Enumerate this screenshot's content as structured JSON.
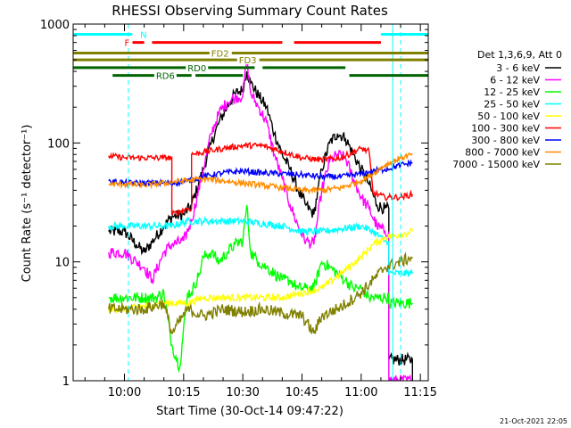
{
  "chart_data": {
    "type": "line",
    "title": "RHESSI Observing Summary Count Rates",
    "xlabel": "Start Time (30-Oct-14 09:47:22)",
    "ylabel": "Count Rate (s⁻¹ detector⁻¹)",
    "y_scale": "log",
    "ylim": [
      1,
      1000
    ],
    "xlim_minutes": [
      -13,
      77
    ],
    "x_tick_labels": [
      "10:00",
      "10:15",
      "10:30",
      "10:45",
      "11:00",
      "11:15"
    ],
    "x_tick_minutes": [
      0,
      15,
      30,
      45,
      60,
      75
    ],
    "y_tick_labels": [
      "1",
      "10",
      "100",
      "1000"
    ],
    "y_tick_values": [
      1,
      10,
      100,
      1000
    ],
    "grid": false,
    "legend": {
      "placement": "right",
      "header": "Det 1,3,6,9, Att 0",
      "entries": [
        {
          "name": "3 - 6 keV",
          "color": "#000000"
        },
        {
          "name": "6 - 12 keV",
          "color": "#ff00ff"
        },
        {
          "name": "12 - 25 keV",
          "color": "#00ff00"
        },
        {
          "name": "25 - 50 keV",
          "color": "#00ffff"
        },
        {
          "name": "50 - 100 keV",
          "color": "#ffff00"
        },
        {
          "name": "100 - 300 keV",
          "color": "#ff0000"
        },
        {
          "name": "300 - 800 keV",
          "color": "#0000ff"
        },
        {
          "name": "800 - 7000 keV",
          "color": "#ff8c00"
        },
        {
          "name": "7000 - 15000 keV",
          "color": "#808000"
        }
      ]
    },
    "series": [
      {
        "name": "3 - 6 keV",
        "color": "#000000",
        "noise": 0.05,
        "points": [
          [
            -4,
            1
          ],
          [
            -4,
            18
          ],
          [
            0,
            18
          ],
          [
            3,
            14
          ],
          [
            5,
            12
          ],
          [
            10,
            20
          ],
          [
            12,
            24
          ],
          [
            15,
            25
          ],
          [
            17,
            30
          ],
          [
            20,
            60
          ],
          [
            22,
            100
          ],
          [
            24,
            150
          ],
          [
            26,
            200
          ],
          [
            28,
            260
          ],
          [
            30,
            280
          ],
          [
            31,
            400
          ],
          [
            32,
            320
          ],
          [
            34,
            250
          ],
          [
            36,
            200
          ],
          [
            38,
            120
          ],
          [
            40,
            80
          ],
          [
            42,
            60
          ],
          [
            44,
            40
          ],
          [
            46,
            30
          ],
          [
            48,
            25
          ],
          [
            50,
            60
          ],
          [
            52,
            100
          ],
          [
            54,
            120
          ],
          [
            56,
            110
          ],
          [
            58,
            80
          ],
          [
            60,
            60
          ],
          [
            62,
            45
          ],
          [
            64,
            30
          ],
          [
            66,
            28
          ],
          [
            67,
            28
          ],
          [
            67,
            1.5
          ],
          [
            73,
            1.5
          ],
          [
            73,
            1
          ]
        ]
      },
      {
        "name": "6 - 12 keV",
        "color": "#ff00ff",
        "noise": 0.05,
        "points": [
          [
            -4,
            1
          ],
          [
            -4,
            12
          ],
          [
            0,
            12
          ],
          [
            3,
            10
          ],
          [
            5,
            9
          ],
          [
            7,
            7
          ],
          [
            10,
            12
          ],
          [
            12,
            14
          ],
          [
            15,
            15
          ],
          [
            17,
            22
          ],
          [
            20,
            60
          ],
          [
            22,
            120
          ],
          [
            24,
            180
          ],
          [
            26,
            220
          ],
          [
            28,
            240
          ],
          [
            30,
            250
          ],
          [
            31,
            500
          ],
          [
            32,
            260
          ],
          [
            34,
            200
          ],
          [
            36,
            150
          ],
          [
            38,
            80
          ],
          [
            40,
            50
          ],
          [
            42,
            30
          ],
          [
            44,
            20
          ],
          [
            46,
            15
          ],
          [
            48,
            14
          ],
          [
            50,
            40
          ],
          [
            52,
            70
          ],
          [
            54,
            80
          ],
          [
            56,
            75
          ],
          [
            58,
            50
          ],
          [
            60,
            35
          ],
          [
            62,
            28
          ],
          [
            64,
            20
          ],
          [
            66,
            18
          ],
          [
            67,
            18
          ],
          [
            67,
            1
          ],
          [
            73,
            1
          ]
        ]
      },
      {
        "name": "12 - 25 keV",
        "color": "#00ff00",
        "noise": 0.05,
        "points": [
          [
            -4,
            1
          ],
          [
            -4,
            5
          ],
          [
            0,
            5
          ],
          [
            5,
            5
          ],
          [
            8,
            5
          ],
          [
            10,
            5.5
          ],
          [
            12,
            2
          ],
          [
            14,
            1.3
          ],
          [
            16,
            5.5
          ],
          [
            17,
            5.5
          ],
          [
            19,
            8
          ],
          [
            20,
            11
          ],
          [
            22,
            12
          ],
          [
            24,
            10
          ],
          [
            26,
            12
          ],
          [
            28,
            14
          ],
          [
            30,
            15
          ],
          [
            31,
            30
          ],
          [
            32,
            12
          ],
          [
            34,
            10
          ],
          [
            36,
            9
          ],
          [
            38,
            8
          ],
          [
            40,
            7
          ],
          [
            42,
            7
          ],
          [
            44,
            6
          ],
          [
            46,
            6
          ],
          [
            48,
            6
          ],
          [
            50,
            10
          ],
          [
            52,
            9
          ],
          [
            54,
            8
          ],
          [
            56,
            7
          ],
          [
            58,
            6
          ],
          [
            60,
            6
          ],
          [
            62,
            5
          ],
          [
            64,
            5
          ],
          [
            66,
            5
          ],
          [
            67,
            5
          ],
          [
            67,
            4.5
          ],
          [
            73,
            4.5
          ]
        ]
      },
      {
        "name": "25 - 50 keV",
        "color": "#00ffff",
        "noise": 0.03,
        "points": [
          [
            -4,
            1
          ],
          [
            -4,
            20
          ],
          [
            0,
            20
          ],
          [
            10,
            20
          ],
          [
            12,
            20
          ],
          [
            16,
            22
          ],
          [
            20,
            22
          ],
          [
            25,
            22
          ],
          [
            30,
            22
          ],
          [
            35,
            21
          ],
          [
            40,
            20
          ],
          [
            45,
            18
          ],
          [
            50,
            18
          ],
          [
            55,
            19
          ],
          [
            60,
            20
          ],
          [
            63,
            18
          ],
          [
            66,
            15
          ],
          [
            67,
            15
          ],
          [
            67,
            8
          ],
          [
            73,
            8
          ]
        ]
      },
      {
        "name": "50 - 100 keV",
        "color": "#ffff00",
        "noise": 0.03,
        "points": [
          [
            -4,
            1
          ],
          [
            -4,
            4
          ],
          [
            0,
            4
          ],
          [
            10,
            4.5
          ],
          [
            16,
            4.5
          ],
          [
            20,
            5
          ],
          [
            30,
            5
          ],
          [
            40,
            5
          ],
          [
            50,
            6
          ],
          [
            55,
            8
          ],
          [
            60,
            11
          ],
          [
            63,
            14
          ],
          [
            66,
            16
          ],
          [
            70,
            17
          ],
          [
            73,
            18
          ]
        ]
      },
      {
        "name": "100 - 300 keV",
        "color": "#ff0000",
        "noise": 0.025,
        "points": [
          [
            -4,
            1
          ],
          [
            -4,
            78
          ],
          [
            0,
            75
          ],
          [
            10,
            75
          ],
          [
            12,
            75
          ],
          [
            12,
            25
          ],
          [
            16,
            28
          ],
          [
            17,
            28
          ],
          [
            17,
            80
          ],
          [
            25,
            90
          ],
          [
            30,
            95
          ],
          [
            35,
            95
          ],
          [
            40,
            85
          ],
          [
            45,
            75
          ],
          [
            50,
            72
          ],
          [
            55,
            75
          ],
          [
            60,
            90
          ],
          [
            62,
            85
          ],
          [
            63,
            38
          ],
          [
            66,
            35
          ],
          [
            70,
            35
          ],
          [
            73,
            37
          ]
        ]
      },
      {
        "name": "300 - 800 keV",
        "color": "#0000ff",
        "noise": 0.025,
        "points": [
          [
            -4,
            1
          ],
          [
            -4,
            48
          ],
          [
            0,
            46
          ],
          [
            10,
            46
          ],
          [
            12,
            46
          ],
          [
            16,
            48
          ],
          [
            20,
            52
          ],
          [
            25,
            56
          ],
          [
            30,
            58
          ],
          [
            35,
            56
          ],
          [
            40,
            55
          ],
          [
            45,
            54
          ],
          [
            50,
            52
          ],
          [
            55,
            52
          ],
          [
            60,
            55
          ],
          [
            63,
            58
          ],
          [
            66,
            60
          ],
          [
            70,
            65
          ],
          [
            73,
            68
          ]
        ]
      },
      {
        "name": "800 - 7000 keV",
        "color": "#ff8c00",
        "noise": 0.025,
        "points": [
          [
            -4,
            1
          ],
          [
            -4,
            45
          ],
          [
            0,
            45
          ],
          [
            5,
            44
          ],
          [
            10,
            46
          ],
          [
            15,
            48
          ],
          [
            20,
            50
          ],
          [
            25,
            48
          ],
          [
            30,
            46
          ],
          [
            35,
            44
          ],
          [
            40,
            42
          ],
          [
            45,
            40
          ],
          [
            50,
            40
          ],
          [
            55,
            42
          ],
          [
            60,
            48
          ],
          [
            63,
            55
          ],
          [
            66,
            65
          ],
          [
            70,
            75
          ],
          [
            73,
            80
          ]
        ]
      },
      {
        "name": "7000 - 15000 keV",
        "color": "#808000",
        "noise": 0.05,
        "points": [
          [
            -4,
            1
          ],
          [
            -4,
            4
          ],
          [
            0,
            4
          ],
          [
            5,
            4
          ],
          [
            10,
            4.5
          ],
          [
            12,
            2.5
          ],
          [
            16,
            4
          ],
          [
            20,
            3.5
          ],
          [
            25,
            4
          ],
          [
            30,
            3.8
          ],
          [
            35,
            4
          ],
          [
            40,
            3.7
          ],
          [
            45,
            3.5
          ],
          [
            48,
            2.5
          ],
          [
            50,
            3.5
          ],
          [
            55,
            4.2
          ],
          [
            60,
            5.5
          ],
          [
            63,
            7
          ],
          [
            66,
            9
          ],
          [
            70,
            10
          ],
          [
            73,
            11
          ]
        ]
      }
    ],
    "indicator_bars": [
      {
        "label": "N",
        "color": "#00ffff",
        "value": 820,
        "segments": [
          [
            -13,
            2
          ],
          [
            65,
            77
          ]
        ]
      },
      {
        "label": "F",
        "color": "#ff0000",
        "value": 700,
        "segments": [
          [
            1,
            5
          ],
          [
            7,
            40
          ],
          [
            43,
            65
          ]
        ]
      },
      {
        "label": "FD2",
        "color": "#808000",
        "value": 570,
        "segments": [
          [
            -13,
            77
          ]
        ]
      },
      {
        "label": "FD3",
        "color": "#808000",
        "value": 500,
        "segments": [
          [
            -13,
            77
          ]
        ]
      },
      {
        "label": "RD0",
        "color": "#006400",
        "value": 430,
        "segments": [
          [
            -13,
            33
          ],
          [
            35,
            56
          ]
        ]
      },
      {
        "label": "RD6",
        "color": "#006400",
        "value": 370,
        "segments": [
          [
            -3,
            17
          ],
          [
            18,
            30
          ],
          [
            57,
            77
          ]
        ]
      }
    ],
    "bar_labels_minutes": {
      "N": 4,
      "F": 0,
      "FD2": 22,
      "FD3": 29,
      "RD0": 16,
      "RD6": 8
    },
    "dashed_markers_minutes": [
      1,
      70
    ],
    "solid_markers_minutes": [
      68
    ]
  },
  "footer": {
    "timestamp": "21-Oct-2021 22:05"
  }
}
